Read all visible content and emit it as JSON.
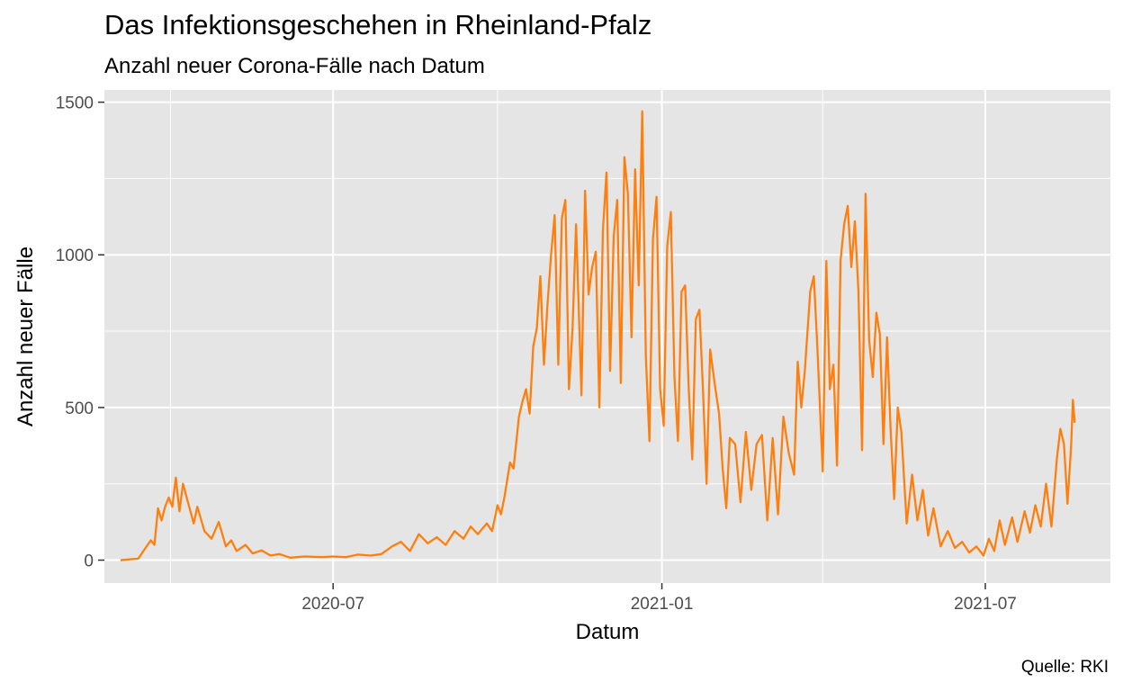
{
  "chart_data": {
    "type": "line",
    "title": "Das Infektionsgeschehen in Rheinland-Pfalz",
    "subtitle": "Anzahl neuer Corona-Fälle nach Datum",
    "caption": "Quelle: RKI",
    "xlabel": "Datum",
    "ylabel": "Anzahl neuer Fälle",
    "x_range": [
      "2020-02-24",
      "2021-09-09"
    ],
    "ylim": [
      -75,
      1540
    ],
    "x_ticks": [
      {
        "date": "2020-07-01",
        "label": "2020-07"
      },
      {
        "date": "2021-01-01",
        "label": "2021-01"
      },
      {
        "date": "2021-07-01",
        "label": "2021-07"
      }
    ],
    "x_minor_ticks": [
      "2020-04-01",
      "2020-10-01",
      "2021-04-01"
    ],
    "y_ticks": [
      0,
      500,
      1000,
      1500
    ],
    "grid": true,
    "colors": {
      "line": "#ff7f0e",
      "panel": "#e5e5e5",
      "grid": "#ffffff"
    },
    "series": [
      {
        "values": [
          [
            "2020-03-04",
            0
          ],
          [
            "2020-03-10",
            3
          ],
          [
            "2020-03-14",
            5
          ],
          [
            "2020-03-18",
            40
          ],
          [
            "2020-03-21",
            65
          ],
          [
            "2020-03-23",
            50
          ],
          [
            "2020-03-25",
            170
          ],
          [
            "2020-03-27",
            130
          ],
          [
            "2020-03-29",
            175
          ],
          [
            "2020-03-31",
            205
          ],
          [
            "2020-04-02",
            175
          ],
          [
            "2020-04-04",
            270
          ],
          [
            "2020-04-06",
            160
          ],
          [
            "2020-04-08",
            250
          ],
          [
            "2020-04-11",
            185
          ],
          [
            "2020-04-14",
            120
          ],
          [
            "2020-04-16",
            175
          ],
          [
            "2020-04-20",
            95
          ],
          [
            "2020-04-24",
            70
          ],
          [
            "2020-04-28",
            125
          ],
          [
            "2020-05-02",
            45
          ],
          [
            "2020-05-05",
            65
          ],
          [
            "2020-05-08",
            30
          ],
          [
            "2020-05-13",
            50
          ],
          [
            "2020-05-17",
            22
          ],
          [
            "2020-05-22",
            32
          ],
          [
            "2020-05-27",
            15
          ],
          [
            "2020-06-01",
            20
          ],
          [
            "2020-06-07",
            8
          ],
          [
            "2020-06-15",
            12
          ],
          [
            "2020-06-25",
            10
          ],
          [
            "2020-07-01",
            12
          ],
          [
            "2020-07-08",
            10
          ],
          [
            "2020-07-15",
            18
          ],
          [
            "2020-07-22",
            15
          ],
          [
            "2020-07-28",
            20
          ],
          [
            "2020-08-03",
            45
          ],
          [
            "2020-08-08",
            60
          ],
          [
            "2020-08-13",
            30
          ],
          [
            "2020-08-18",
            85
          ],
          [
            "2020-08-23",
            55
          ],
          [
            "2020-08-28",
            75
          ],
          [
            "2020-09-02",
            50
          ],
          [
            "2020-09-07",
            95
          ],
          [
            "2020-09-12",
            70
          ],
          [
            "2020-09-16",
            110
          ],
          [
            "2020-09-20",
            85
          ],
          [
            "2020-09-25",
            120
          ],
          [
            "2020-09-28",
            95
          ],
          [
            "2020-10-01",
            180
          ],
          [
            "2020-10-03",
            150
          ],
          [
            "2020-10-05",
            210
          ],
          [
            "2020-10-08",
            320
          ],
          [
            "2020-10-10",
            300
          ],
          [
            "2020-10-13",
            470
          ],
          [
            "2020-10-15",
            520
          ],
          [
            "2020-10-17",
            560
          ],
          [
            "2020-10-19",
            480
          ],
          [
            "2020-10-21",
            700
          ],
          [
            "2020-10-23",
            760
          ],
          [
            "2020-10-25",
            930
          ],
          [
            "2020-10-27",
            640
          ],
          [
            "2020-10-29",
            840
          ],
          [
            "2020-10-31",
            1000
          ],
          [
            "2020-11-02",
            1130
          ],
          [
            "2020-11-04",
            640
          ],
          [
            "2020-11-06",
            1120
          ],
          [
            "2020-11-08",
            1180
          ],
          [
            "2020-11-10",
            560
          ],
          [
            "2020-11-12",
            760
          ],
          [
            "2020-11-14",
            1100
          ],
          [
            "2020-11-17",
            540
          ],
          [
            "2020-11-19",
            1210
          ],
          [
            "2020-11-21",
            870
          ],
          [
            "2020-11-23",
            960
          ],
          [
            "2020-11-25",
            1010
          ],
          [
            "2020-11-27",
            500
          ],
          [
            "2020-11-29",
            1080
          ],
          [
            "2020-12-01",
            1270
          ],
          [
            "2020-12-03",
            620
          ],
          [
            "2020-12-05",
            1060
          ],
          [
            "2020-12-07",
            1180
          ],
          [
            "2020-12-09",
            580
          ],
          [
            "2020-12-11",
            1320
          ],
          [
            "2020-12-13",
            1200
          ],
          [
            "2020-12-15",
            730
          ],
          [
            "2020-12-17",
            1280
          ],
          [
            "2020-12-19",
            900
          ],
          [
            "2020-12-21",
            1470
          ],
          [
            "2020-12-23",
            670
          ],
          [
            "2020-12-25",
            390
          ],
          [
            "2020-12-27",
            1050
          ],
          [
            "2020-12-29",
            1190
          ],
          [
            "2020-12-31",
            560
          ],
          [
            "2021-01-02",
            440
          ],
          [
            "2021-01-04",
            1030
          ],
          [
            "2021-01-06",
            1140
          ],
          [
            "2021-01-08",
            600
          ],
          [
            "2021-01-10",
            390
          ],
          [
            "2021-01-12",
            880
          ],
          [
            "2021-01-14",
            900
          ],
          [
            "2021-01-16",
            560
          ],
          [
            "2021-01-18",
            330
          ],
          [
            "2021-01-20",
            790
          ],
          [
            "2021-01-22",
            820
          ],
          [
            "2021-01-24",
            560
          ],
          [
            "2021-01-26",
            250
          ],
          [
            "2021-01-28",
            690
          ],
          [
            "2021-01-31",
            560
          ],
          [
            "2021-02-02",
            480
          ],
          [
            "2021-02-04",
            300
          ],
          [
            "2021-02-06",
            170
          ],
          [
            "2021-02-08",
            400
          ],
          [
            "2021-02-11",
            380
          ],
          [
            "2021-02-14",
            190
          ],
          [
            "2021-02-17",
            420
          ],
          [
            "2021-02-20",
            230
          ],
          [
            "2021-02-23",
            380
          ],
          [
            "2021-02-26",
            410
          ],
          [
            "2021-03-01",
            130
          ],
          [
            "2021-03-04",
            400
          ],
          [
            "2021-03-07",
            150
          ],
          [
            "2021-03-10",
            470
          ],
          [
            "2021-03-13",
            350
          ],
          [
            "2021-03-16",
            280
          ],
          [
            "2021-03-18",
            650
          ],
          [
            "2021-03-20",
            500
          ],
          [
            "2021-03-22",
            620
          ],
          [
            "2021-03-25",
            880
          ],
          [
            "2021-03-27",
            930
          ],
          [
            "2021-03-29",
            700
          ],
          [
            "2021-04-01",
            290
          ],
          [
            "2021-04-03",
            980
          ],
          [
            "2021-04-05",
            560
          ],
          [
            "2021-04-07",
            640
          ],
          [
            "2021-04-09",
            310
          ],
          [
            "2021-04-11",
            980
          ],
          [
            "2021-04-13",
            1100
          ],
          [
            "2021-04-15",
            1160
          ],
          [
            "2021-04-17",
            960
          ],
          [
            "2021-04-19",
            1110
          ],
          [
            "2021-04-21",
            880
          ],
          [
            "2021-04-23",
            360
          ],
          [
            "2021-04-25",
            1200
          ],
          [
            "2021-04-27",
            720
          ],
          [
            "2021-04-29",
            600
          ],
          [
            "2021-05-01",
            810
          ],
          [
            "2021-05-03",
            740
          ],
          [
            "2021-05-05",
            380
          ],
          [
            "2021-05-07",
            730
          ],
          [
            "2021-05-09",
            430
          ],
          [
            "2021-05-11",
            200
          ],
          [
            "2021-05-13",
            500
          ],
          [
            "2021-05-15",
            420
          ],
          [
            "2021-05-18",
            120
          ],
          [
            "2021-05-21",
            280
          ],
          [
            "2021-05-24",
            130
          ],
          [
            "2021-05-27",
            230
          ],
          [
            "2021-05-30",
            80
          ],
          [
            "2021-06-02",
            170
          ],
          [
            "2021-06-06",
            45
          ],
          [
            "2021-06-10",
            95
          ],
          [
            "2021-06-14",
            40
          ],
          [
            "2021-06-18",
            60
          ],
          [
            "2021-06-22",
            25
          ],
          [
            "2021-06-26",
            45
          ],
          [
            "2021-06-30",
            15
          ],
          [
            "2021-07-03",
            70
          ],
          [
            "2021-07-06",
            30
          ],
          [
            "2021-07-09",
            130
          ],
          [
            "2021-07-12",
            50
          ],
          [
            "2021-07-16",
            140
          ],
          [
            "2021-07-19",
            60
          ],
          [
            "2021-07-23",
            160
          ],
          [
            "2021-07-26",
            90
          ],
          [
            "2021-07-29",
            180
          ],
          [
            "2021-08-01",
            110
          ],
          [
            "2021-08-04",
            250
          ],
          [
            "2021-08-07",
            110
          ],
          [
            "2021-08-10",
            330
          ],
          [
            "2021-08-12",
            430
          ],
          [
            "2021-08-14",
            380
          ],
          [
            "2021-08-16",
            185
          ],
          [
            "2021-08-18",
            370
          ],
          [
            "2021-08-19",
            525
          ],
          [
            "2021-08-20",
            450
          ]
        ]
      }
    ]
  }
}
